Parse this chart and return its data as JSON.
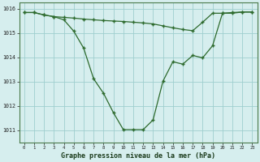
{
  "title": "Graphe pression niveau de la mer (hPa)",
  "line1_x": [
    0,
    1,
    2,
    3,
    4,
    5,
    6,
    7,
    8,
    9,
    10,
    11,
    12,
    13,
    14,
    15,
    16,
    17,
    18,
    19,
    20,
    21,
    22,
    23
  ],
  "line1_y": [
    1015.85,
    1015.85,
    1015.75,
    1015.68,
    1015.65,
    1015.62,
    1015.58,
    1015.55,
    1015.52,
    1015.5,
    1015.48,
    1015.45,
    1015.42,
    1015.38,
    1015.3,
    1015.22,
    1015.15,
    1015.1,
    1015.45,
    1015.82,
    1015.82,
    1015.85,
    1015.87,
    1015.87
  ],
  "line2_x": [
    0,
    1,
    2,
    3,
    4,
    5,
    6,
    7,
    8,
    9,
    10,
    11,
    12,
    13,
    14,
    15,
    16,
    17,
    18,
    19,
    20,
    21,
    22,
    23
  ],
  "line2_y": [
    1015.85,
    1015.85,
    1015.75,
    1015.68,
    1015.55,
    1015.08,
    1014.38,
    1013.12,
    1012.52,
    1011.72,
    1011.02,
    1011.02,
    1011.02,
    1011.42,
    1013.02,
    1013.82,
    1013.72,
    1014.08,
    1013.98,
    1014.48,
    1015.82,
    1015.82,
    1015.87,
    1015.87
  ],
  "line_color": "#2d6a2d",
  "bg_color": "#d6eeee",
  "grid_color": "#9ecece",
  "border_color": "#4a7a4a",
  "ylim_min": 1010.5,
  "ylim_max": 1016.25,
  "xlim_min": -0.5,
  "xlim_max": 23.5,
  "yticks": [
    1011,
    1012,
    1013,
    1014,
    1015,
    1016
  ],
  "xticks": [
    0,
    1,
    2,
    3,
    4,
    5,
    6,
    7,
    8,
    9,
    10,
    11,
    12,
    13,
    14,
    15,
    16,
    17,
    18,
    19,
    20,
    21,
    22,
    23
  ]
}
